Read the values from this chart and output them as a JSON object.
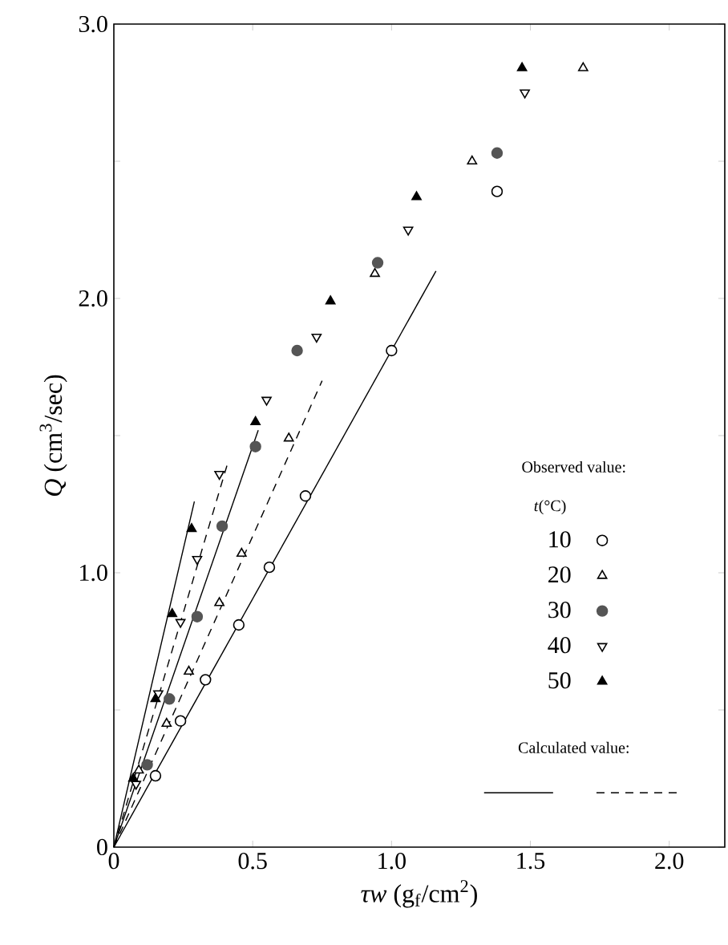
{
  "chart_data": {
    "type": "scatter",
    "xlabel": "*τw* (g$_{f}$/cm$^{2}$)",
    "ylabel": "*Q* (cm$^{3}$/sec)",
    "legend_title": "Observed value:",
    "annotations": [
      "*t*(°C)",
      "Calculated value:"
    ],
    "legend": "right",
    "xlim": [
      0,
      2.2
    ],
    "ylim": [
      0,
      3.0
    ],
    "xticks": [
      {
        "value": 0,
        "label": "0"
      },
      {
        "value": 0.5,
        "label": "0.5"
      },
      {
        "value": 1.0,
        "label": "1.0"
      },
      {
        "value": 1.5,
        "label": "1.5"
      },
      {
        "value": 2.0,
        "label": "2.0"
      }
    ],
    "yticks": [
      {
        "value": 0,
        "label": "0"
      },
      {
        "value": 0.5,
        "label": null
      },
      {
        "value": 1.0,
        "label": "1.0"
      },
      {
        "value": 1.5,
        "label": null
      },
      {
        "value": 2.0,
        "label": "2.0"
      },
      {
        "value": 2.5,
        "label": null
      },
      {
        "value": 3.0,
        "label": "3.0"
      }
    ],
    "series": [
      {
        "name": "10",
        "color": "#000000",
        "marker": "circle-open",
        "x": [
          0.15,
          0.24,
          0.33,
          0.45,
          0.56,
          0.69,
          1.0,
          1.38
        ],
        "values": [
          0.26,
          0.46,
          0.61,
          0.81,
          1.02,
          1.28,
          1.81,
          2.39
        ]
      },
      {
        "name": "20",
        "color": "#000000",
        "marker": "triangle-open",
        "x": [
          0.09,
          0.19,
          0.27,
          0.38,
          0.46,
          0.63,
          0.94,
          1.29,
          1.69
        ],
        "values": [
          0.28,
          0.45,
          0.64,
          0.89,
          1.07,
          1.49,
          2.09,
          2.5,
          2.84
        ]
      },
      {
        "name": "30",
        "color": "#555555",
        "marker": "circle",
        "x": [
          0.12,
          0.2,
          0.3,
          0.39,
          0.51,
          0.66,
          0.95,
          1.38
        ],
        "values": [
          0.3,
          0.54,
          0.84,
          1.17,
          1.46,
          1.81,
          2.13,
          2.53
        ]
      },
      {
        "name": "40",
        "color": "#000000",
        "marker": "triangle-down-open",
        "x": [
          0.08,
          0.16,
          0.24,
          0.3,
          0.38,
          0.55,
          0.73,
          1.06,
          1.48
        ],
        "values": [
          0.23,
          0.56,
          0.82,
          1.05,
          1.36,
          1.63,
          1.86,
          2.25,
          2.75
        ]
      },
      {
        "name": "50",
        "color": "#000000",
        "marker": "triangle",
        "x": [
          0.07,
          0.15,
          0.21,
          0.28,
          0.51,
          0.78,
          1.09,
          1.47
        ],
        "values": [
          0.25,
          0.54,
          0.85,
          1.16,
          1.55,
          1.99,
          2.37,
          2.84
        ]
      },
      {
        "type": "line",
        "color": "#000000",
        "line_style": "solid",
        "x": [
          0,
          1.16
        ],
        "values": [
          0,
          2.1
        ]
      },
      {
        "type": "line",
        "color": "#000000",
        "line_style": "dashed",
        "x": [
          0,
          0.75
        ],
        "values": [
          0,
          1.7
        ]
      },
      {
        "type": "line",
        "color": "#000000",
        "line_style": "solid",
        "x": [
          0,
          0.52
        ],
        "values": [
          0,
          1.52
        ]
      },
      {
        "type": "line",
        "color": "#000000",
        "line_style": "dashed",
        "x": [
          0,
          0.41
        ],
        "values": [
          0,
          1.4
        ]
      },
      {
        "type": "line",
        "color": "#000000",
        "line_style": "solid",
        "x": [
          0,
          0.29
        ],
        "values": [
          0,
          1.26
        ]
      }
    ]
  }
}
